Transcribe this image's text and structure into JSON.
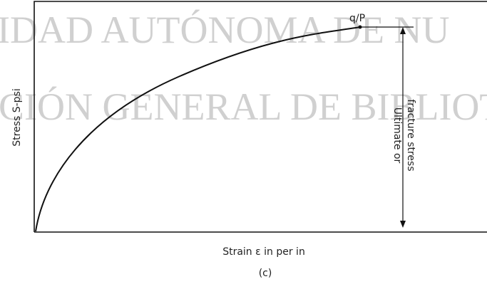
{
  "watermark": {
    "line1": "IDAD AUTÓNOMA DE NU",
    "line2": "CIÓN GENERAL DE BIBLIOT"
  },
  "diagram": {
    "y_label": "Stress S-psi",
    "x_label": "Strain ε in per in",
    "caption": "(c)",
    "point_label": "q/P",
    "annotation": [
      "Ultimate or",
      "fracture stress"
    ]
  }
}
